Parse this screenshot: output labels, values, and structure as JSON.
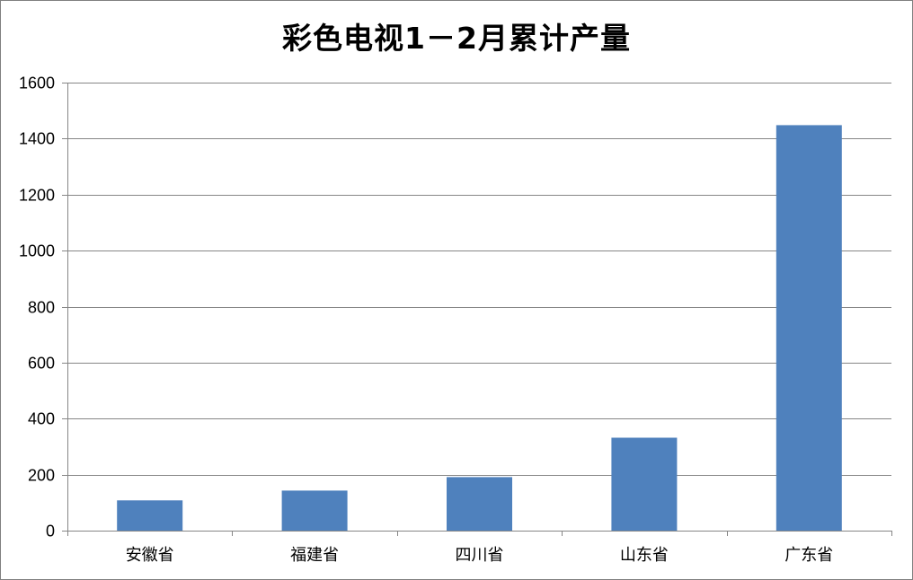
{
  "chart_data": {
    "type": "bar",
    "title": "彩色电视1－2月累计产量",
    "categories": [
      "安徽省",
      "福建省",
      "四川省",
      "山东省",
      "广东省"
    ],
    "series": [
      {
        "values": [
          108,
          143,
          191,
          332,
          1448
        ]
      }
    ],
    "ylim": [
      0,
      1600
    ],
    "yticks": [
      0,
      200,
      400,
      600,
      800,
      1000,
      1200,
      1400,
      1600
    ],
    "xlabel": "",
    "ylabel": "",
    "grid": true,
    "legend": "none",
    "colors": {
      "bar": "#4F81BD",
      "grid": "#868686",
      "axis": "#868686"
    }
  }
}
